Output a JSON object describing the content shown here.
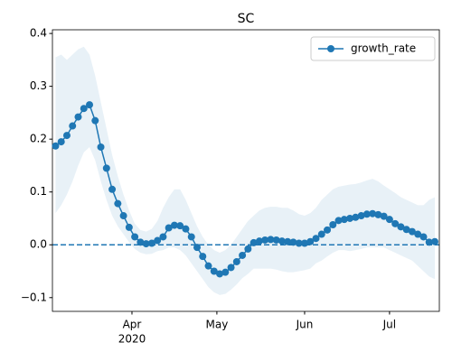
{
  "chart_data": {
    "type": "line",
    "title": "SC",
    "x": [
      4,
      6,
      8,
      10,
      12,
      14,
      16,
      18,
      20,
      22,
      24,
      26,
      28,
      30,
      32,
      34,
      36,
      38,
      40,
      42,
      44,
      46,
      48,
      50,
      52,
      54,
      56,
      58,
      60,
      62,
      64,
      66,
      68,
      70,
      72,
      74,
      76,
      78,
      80,
      82,
      84,
      86,
      88,
      90,
      92,
      94,
      96,
      98,
      100,
      102,
      104,
      106,
      108,
      110,
      112,
      114,
      116,
      118,
      120,
      122,
      124,
      126,
      128,
      130,
      132,
      134,
      136,
      138
    ],
    "series": [
      {
        "name": "growth_rate",
        "color": "#1f77b4",
        "values": [
          0.187,
          0.195,
          0.207,
          0.225,
          0.242,
          0.258,
          0.265,
          0.235,
          0.185,
          0.145,
          0.105,
          0.078,
          0.055,
          0.033,
          0.015,
          0.005,
          0.002,
          0.003,
          0.008,
          0.015,
          0.032,
          0.037,
          0.036,
          0.03,
          0.015,
          -0.005,
          -0.022,
          -0.04,
          -0.05,
          -0.055,
          -0.052,
          -0.043,
          -0.032,
          -0.02,
          -0.008,
          0.004,
          0.007,
          0.009,
          0.01,
          0.009,
          0.007,
          0.006,
          0.005,
          0.003,
          0.003,
          0.006,
          0.012,
          0.02,
          0.028,
          0.038,
          0.046,
          0.048,
          0.05,
          0.052,
          0.055,
          0.058,
          0.059,
          0.057,
          0.054,
          0.048,
          0.04,
          0.034,
          0.029,
          0.025,
          0.02,
          0.015,
          0.005,
          0.006
        ]
      }
    ],
    "band": {
      "color": "#1f77b4",
      "opacity": 0.1,
      "upper": [
        0.355,
        0.36,
        0.35,
        0.36,
        0.37,
        0.375,
        0.36,
        0.32,
        0.27,
        0.22,
        0.17,
        0.13,
        0.095,
        0.065,
        0.04,
        0.028,
        0.025,
        0.03,
        0.045,
        0.07,
        0.09,
        0.105,
        0.105,
        0.085,
        0.06,
        0.035,
        0.015,
        0.0,
        -0.01,
        -0.015,
        -0.01,
        0.0,
        0.015,
        0.03,
        0.045,
        0.055,
        0.065,
        0.07,
        0.072,
        0.072,
        0.07,
        0.07,
        0.065,
        0.058,
        0.055,
        0.06,
        0.07,
        0.085,
        0.095,
        0.105,
        0.11,
        0.112,
        0.114,
        0.115,
        0.118,
        0.122,
        0.125,
        0.12,
        0.112,
        0.105,
        0.098,
        0.09,
        0.085,
        0.08,
        0.075,
        0.075,
        0.085,
        0.09
      ],
      "lower": [
        0.06,
        0.075,
        0.095,
        0.12,
        0.15,
        0.175,
        0.185,
        0.16,
        0.12,
        0.085,
        0.055,
        0.035,
        0.02,
        0.005,
        -0.008,
        -0.015,
        -0.018,
        -0.017,
        -0.012,
        -0.01,
        -0.005,
        -0.005,
        -0.01,
        -0.02,
        -0.035,
        -0.05,
        -0.065,
        -0.08,
        -0.09,
        -0.095,
        -0.093,
        -0.085,
        -0.075,
        -0.063,
        -0.055,
        -0.045,
        -0.045,
        -0.045,
        -0.045,
        -0.047,
        -0.05,
        -0.052,
        -0.052,
        -0.05,
        -0.048,
        -0.045,
        -0.035,
        -0.03,
        -0.022,
        -0.015,
        -0.01,
        -0.01,
        -0.012,
        -0.01,
        -0.008,
        -0.005,
        -0.005,
        -0.005,
        -0.005,
        -0.01,
        -0.015,
        -0.02,
        -0.025,
        -0.03,
        -0.04,
        -0.05,
        -0.06,
        -0.065
      ]
    },
    "hline": 0,
    "xlim": [
      2.9,
      139.6
    ],
    "xticks": [
      {
        "value": 31,
        "label": "Apr"
      },
      {
        "value": 61,
        "label": "May"
      },
      {
        "value": 92,
        "label": "Jun"
      },
      {
        "value": 122,
        "label": "Jul"
      }
    ],
    "x_year_label": "2020",
    "ylim": [
      -0.126,
      0.407
    ],
    "yticks": [
      {
        "value": -0.1,
        "label": "−0.1"
      },
      {
        "value": 0,
        "label": "0.0"
      },
      0.1,
      0.2,
      0.3,
      0.4
    ],
    "legend": "upper right"
  }
}
